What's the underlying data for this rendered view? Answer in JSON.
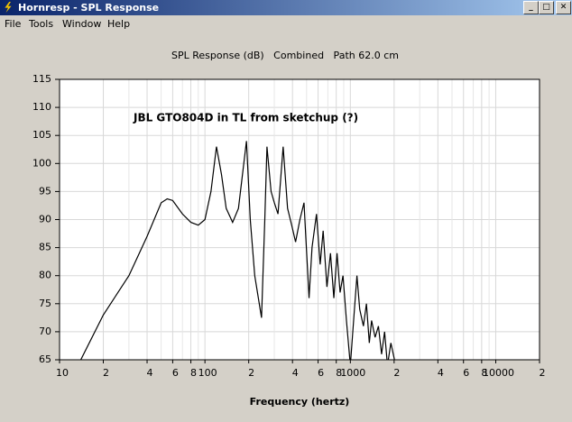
{
  "window": {
    "title": "Hornresp - SPL Response"
  },
  "menu": [
    "File",
    "Tools",
    "Window",
    "Help"
  ],
  "chart_data": {
    "type": "line",
    "title": "SPL Response (dB)   Combined   Path 62.0 cm",
    "annotation": "JBL GTO804D in TL from sketchup (?)",
    "x_label": "Frequency (hertz)",
    "x_log": true,
    "grid": true,
    "xlim": [
      10,
      20000
    ],
    "ylim": [
      65,
      115
    ],
    "xticks": [
      10,
      {
        "value": 20,
        "label": "2"
      },
      {
        "value": 40,
        "label": "4"
      },
      {
        "value": 60,
        "label": "6"
      },
      {
        "value": 80,
        "label": "8"
      },
      100,
      {
        "value": 200,
        "label": "2"
      },
      {
        "value": 400,
        "label": "4"
      },
      {
        "value": 600,
        "label": "6"
      },
      {
        "value": 800,
        "label": "8"
      },
      1000,
      {
        "value": 2000,
        "label": "2"
      },
      {
        "value": 4000,
        "label": "4"
      },
      {
        "value": 6000,
        "label": "6"
      },
      {
        "value": 8000,
        "label": "8"
      },
      10000,
      {
        "value": 20000,
        "label": "2"
      }
    ],
    "xminorticks": [
      30,
      50,
      70,
      90,
      300,
      500,
      700,
      900,
      3000,
      5000,
      7000,
      9000
    ],
    "yticks": [
      65,
      70,
      75,
      80,
      85,
      90,
      95,
      100,
      105,
      110,
      115
    ],
    "series": [
      {
        "color": "#000000",
        "x": [
          14,
          20,
          30,
          40,
          50,
          55,
          60,
          70,
          80,
          90,
          100,
          110,
          120,
          130,
          140,
          155,
          170,
          185,
          193,
          205,
          220,
          245,
          258,
          267,
          285,
          300,
          318,
          345,
          370,
          395,
          420,
          450,
          480,
          520,
          545,
          585,
          620,
          650,
          690,
          730,
          770,
          810,
          850,
          890,
          940,
          1000,
          1060,
          1110,
          1160,
          1230,
          1290,
          1350,
          1400,
          1480,
          1560,
          1640,
          1720,
          1800,
          1900,
          2050
        ],
        "values": [
          65,
          73,
          80,
          87,
          93,
          93.7,
          93.4,
          91,
          89.5,
          89,
          90,
          95,
          103,
          98,
          92,
          89.5,
          92,
          100,
          104,
          90,
          80,
          72.5,
          90,
          103,
          95,
          93,
          91,
          103,
          92,
          89,
          86,
          90,
          93,
          76,
          85,
          91,
          82,
          88,
          78,
          84,
          76,
          84,
          77,
          80,
          72,
          64,
          73,
          80,
          74,
          71,
          75,
          68,
          72,
          69,
          71,
          66,
          70,
          64,
          68,
          64
        ]
      }
    ]
  }
}
